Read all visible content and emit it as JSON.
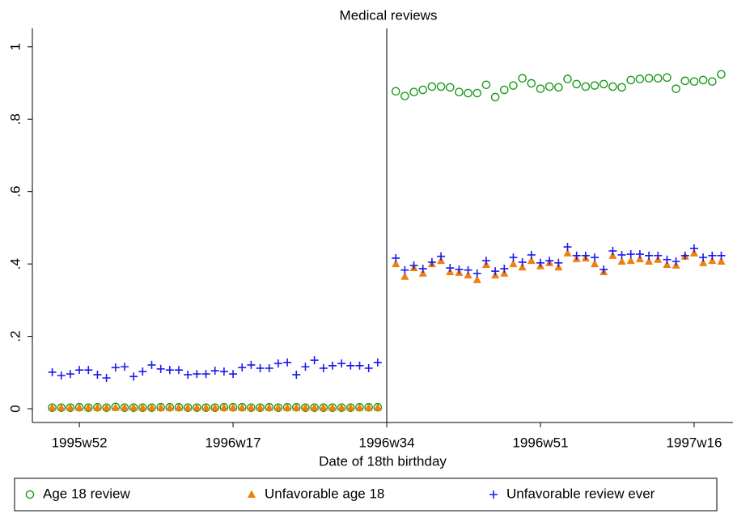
{
  "chart_data": {
    "type": "scatter",
    "title": "Medical reviews",
    "x_label": "Date of 18th birthday",
    "x": [
      1868,
      1869,
      1870,
      1871,
      1872,
      1873,
      1874,
      1875,
      1876,
      1877,
      1878,
      1879,
      1880,
      1881,
      1882,
      1883,
      1884,
      1885,
      1886,
      1887,
      1888,
      1889,
      1890,
      1891,
      1892,
      1893,
      1894,
      1895,
      1896,
      1897,
      1898,
      1899,
      1900,
      1901,
      1902,
      1903,
      1904,
      1906,
      1907,
      1908,
      1909,
      1910,
      1911,
      1912,
      1913,
      1914,
      1915,
      1916,
      1917,
      1918,
      1919,
      1920,
      1921,
      1922,
      1923,
      1924,
      1925,
      1926,
      1927,
      1928,
      1929,
      1930,
      1931,
      1932,
      1933,
      1934,
      1935,
      1936,
      1937,
      1938,
      1939,
      1940,
      1941,
      1942
    ],
    "series": [
      {
        "name": "Age 18 review",
        "color": "#1a9a1a",
        "marker": "hollow-circle",
        "values": [
          0.003,
          0.003,
          0.003,
          0.004,
          0.003,
          0.004,
          0.003,
          0.005,
          0.003,
          0.003,
          0.003,
          0.003,
          0.004,
          0.004,
          0.004,
          0.003,
          0.003,
          0.003,
          0.003,
          0.004,
          0.004,
          0.004,
          0.003,
          0.003,
          0.004,
          0.003,
          0.004,
          0.004,
          0.003,
          0.003,
          0.003,
          0.003,
          0.003,
          0.003,
          0.004,
          0.004,
          0.004,
          0.877,
          0.864,
          0.875,
          0.881,
          0.89,
          0.89,
          0.888,
          0.875,
          0.872,
          0.872,
          0.895,
          0.861,
          0.881,
          0.893,
          0.913,
          0.899,
          0.884,
          0.89,
          0.888,
          0.911,
          0.897,
          0.89,
          0.893,
          0.897,
          0.89,
          0.888,
          0.908,
          0.911,
          0.913,
          0.913,
          0.915,
          0.884,
          0.906,
          0.904,
          0.908,
          0.904,
          0.924
        ]
      },
      {
        "name": "Unfavorable age 18",
        "color": "#f07f0f",
        "marker": "triangle",
        "values": [
          0.003,
          0.003,
          0.003,
          0.003,
          0.003,
          0.003,
          0.003,
          0.003,
          0.003,
          0.003,
          0.003,
          0.003,
          0.003,
          0.003,
          0.003,
          0.003,
          0.003,
          0.003,
          0.003,
          0.003,
          0.003,
          0.003,
          0.003,
          0.003,
          0.003,
          0.003,
          0.003,
          0.003,
          0.003,
          0.003,
          0.003,
          0.003,
          0.003,
          0.003,
          0.003,
          0.003,
          0.003,
          0.4,
          0.365,
          0.389,
          0.374,
          0.4,
          0.409,
          0.378,
          0.376,
          0.369,
          0.356,
          0.398,
          0.369,
          0.374,
          0.4,
          0.391,
          0.409,
          0.394,
          0.403,
          0.391,
          0.43,
          0.414,
          0.416,
          0.4,
          0.378,
          0.423,
          0.407,
          0.409,
          0.414,
          0.407,
          0.412,
          0.398,
          0.396,
          0.421,
          0.43,
          0.403,
          0.409,
          0.407
        ]
      },
      {
        "name": "Unfavorable review ever",
        "color": "#1a1aee",
        "marker": "plus",
        "values": [
          0.101,
          0.092,
          0.096,
          0.107,
          0.107,
          0.094,
          0.085,
          0.114,
          0.116,
          0.089,
          0.103,
          0.121,
          0.11,
          0.107,
          0.107,
          0.094,
          0.096,
          0.096,
          0.105,
          0.103,
          0.096,
          0.114,
          0.121,
          0.112,
          0.112,
          0.125,
          0.128,
          0.094,
          0.116,
          0.134,
          0.112,
          0.119,
          0.125,
          0.119,
          0.119,
          0.112,
          0.128,
          0.416,
          0.383,
          0.396,
          0.387,
          0.405,
          0.421,
          0.389,
          0.385,
          0.383,
          0.374,
          0.409,
          0.38,
          0.387,
          0.418,
          0.405,
          0.425,
          0.403,
          0.409,
          0.403,
          0.447,
          0.423,
          0.423,
          0.418,
          0.385,
          0.436,
          0.425,
          0.427,
          0.427,
          0.423,
          0.423,
          0.412,
          0.407,
          0.423,
          0.443,
          0.418,
          0.423,
          0.423
        ]
      }
    ],
    "xlim": [
      1865.8,
      1943.3
    ],
    "xticks": [
      {
        "value": 1871,
        "label": "1995w52"
      },
      {
        "value": 1888,
        "label": "1996w17"
      },
      {
        "value": 1905,
        "label": "1996w34"
      },
      {
        "value": 1922,
        "label": "1996w51"
      },
      {
        "value": 1939,
        "label": "1997w16"
      }
    ],
    "ylim": [
      -0.038,
      1.051
    ],
    "yticks": [
      0,
      {
        "value": 0.2,
        "label": ".2"
      },
      {
        "value": 0.4,
        "label": ".4"
      },
      {
        "value": 0.6,
        "label": ".6"
      },
      {
        "value": 0.8,
        "label": ".8"
      },
      1
    ],
    "xline": 1905,
    "legend": "bottom"
  }
}
